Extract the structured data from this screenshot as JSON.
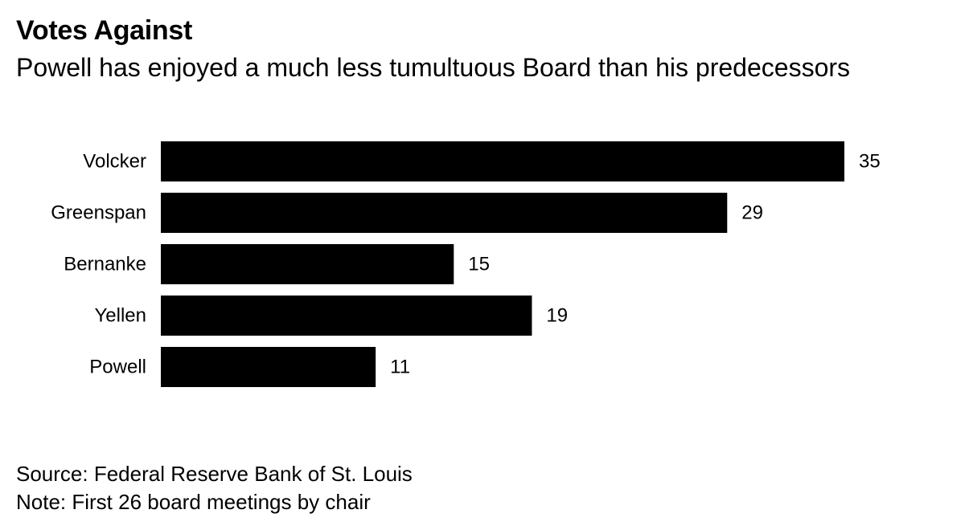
{
  "chart_data": {
    "type": "bar",
    "orientation": "horizontal",
    "title": "Votes Against",
    "subtitle": "Powell has enjoyed a much less tumultuous Board than his predecessors",
    "categories": [
      "Volcker",
      "Greenspan",
      "Bernanke",
      "Yellen",
      "Powell"
    ],
    "values": [
      35,
      29,
      15,
      19,
      11
    ],
    "xlim": [
      0,
      35
    ],
    "grid": false,
    "legend": "none",
    "bar_color": "#000000",
    "source": "Source: Federal Reserve Bank of St. Louis",
    "note": "Note: First 26 board meetings by chair"
  }
}
